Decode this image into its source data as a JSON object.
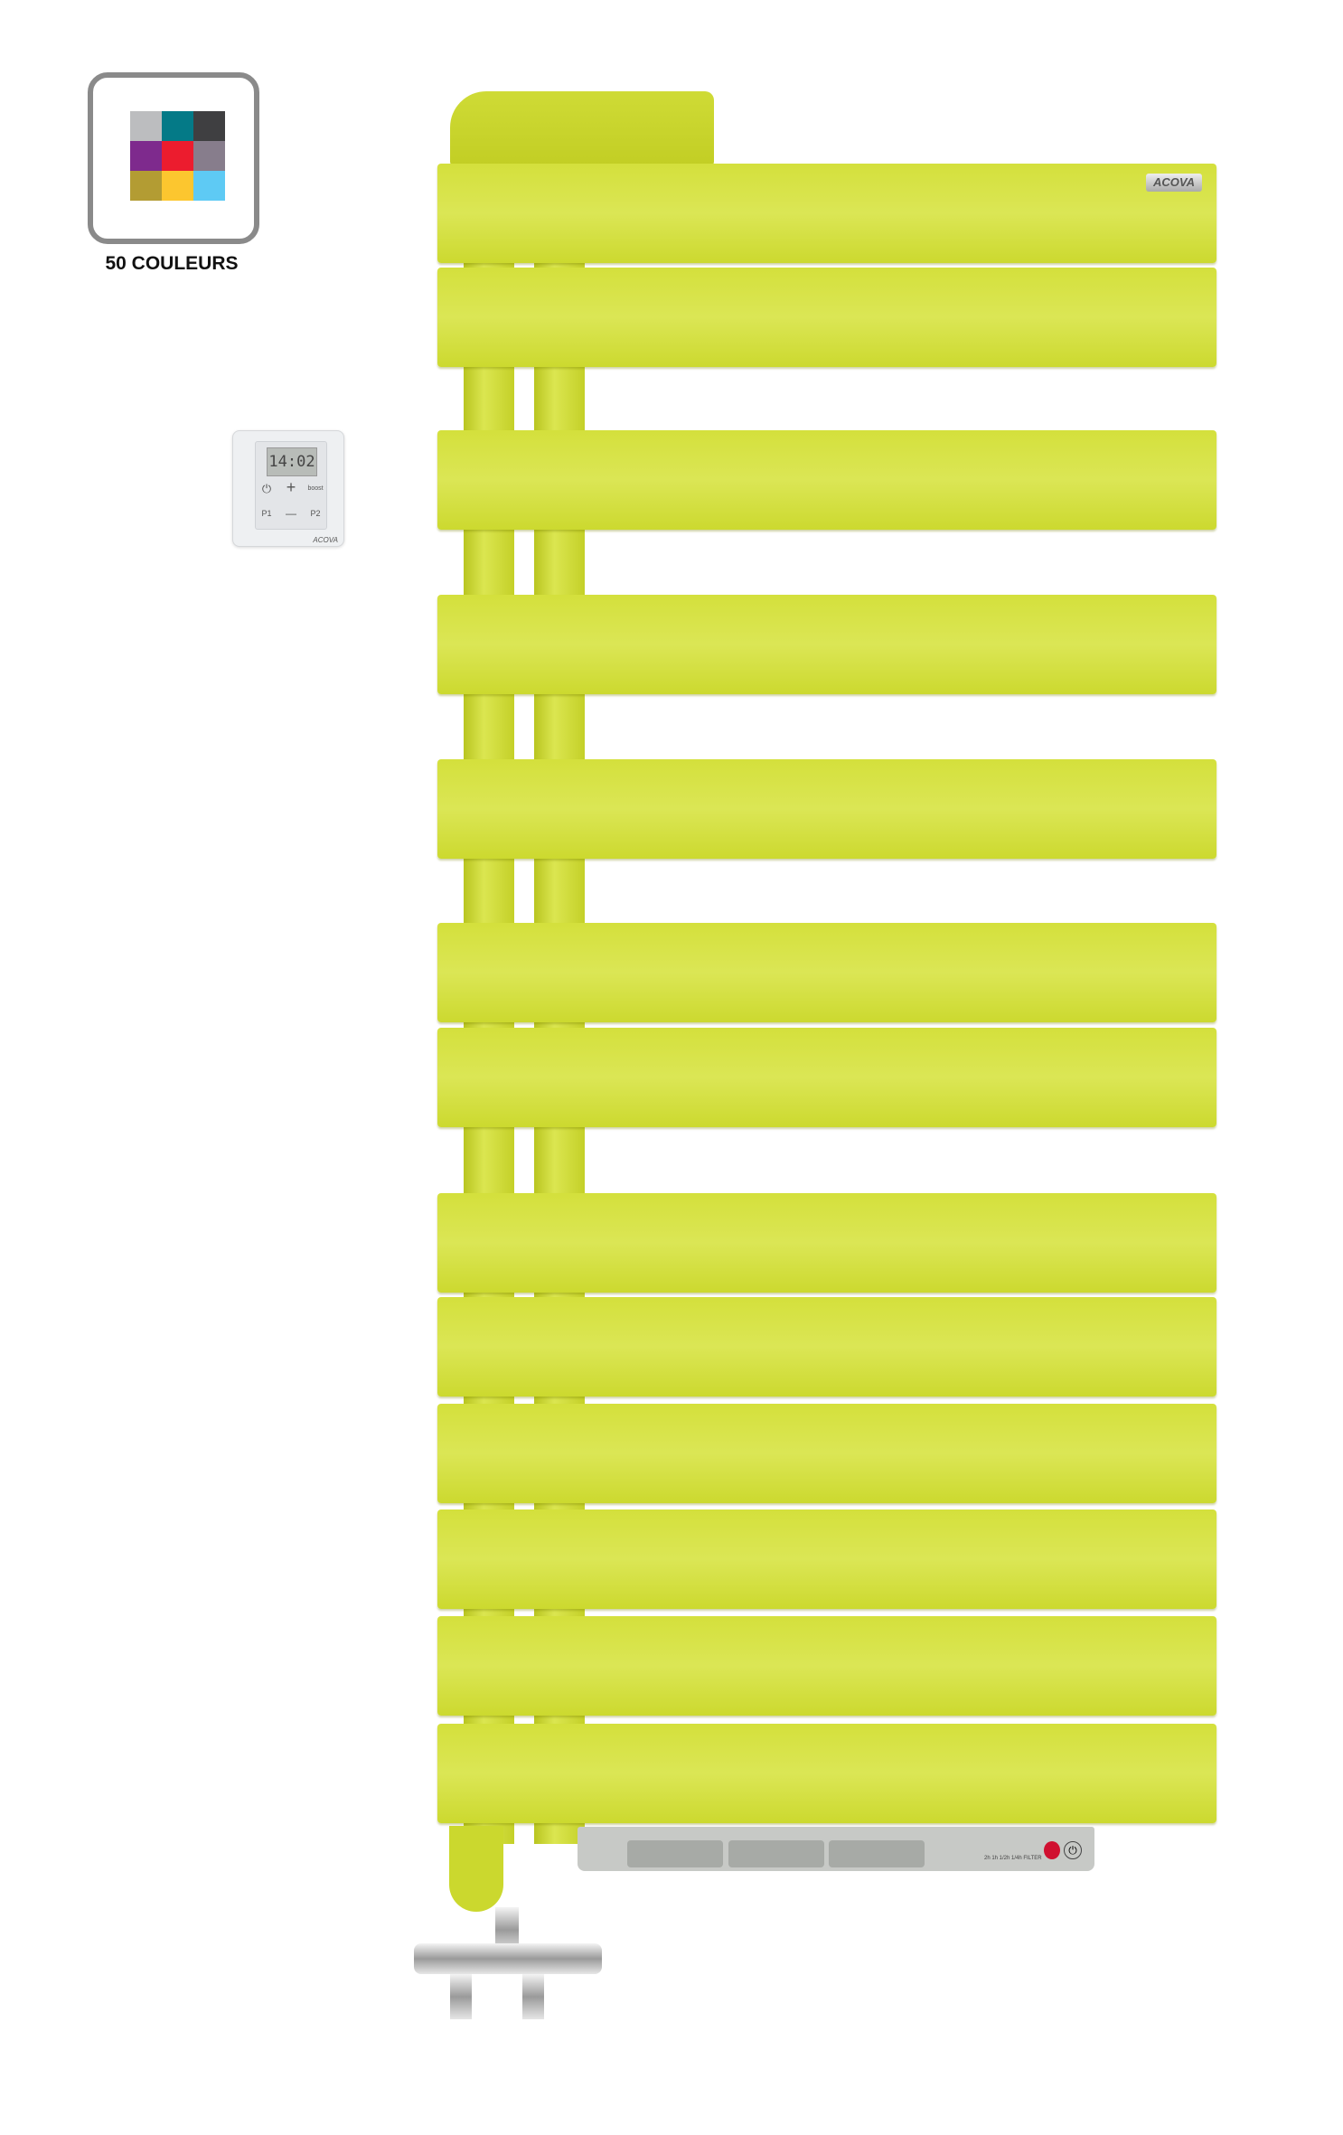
{
  "badge": {
    "label": "50 COULEURS",
    "swatches": [
      "#bcbdbf",
      "#047a87",
      "#3f3f41",
      "#7e2a8d",
      "#ec1c2e",
      "#877d8c",
      "#b39c33",
      "#fcc62f",
      "#5ecaf4"
    ]
  },
  "controller": {
    "display": "14:02",
    "buttons": [
      "⏻",
      "+",
      "boost",
      "P1",
      "—",
      "P2"
    ],
    "brand": "ACOVA"
  },
  "radiator": {
    "brand": "ACOVA",
    "color": "#d4e03c",
    "bar_count": 13
  },
  "control_panel": {
    "indicators": "2h 1h 1/2h 1/4h FILTER",
    "power_icon": "power-icon"
  }
}
